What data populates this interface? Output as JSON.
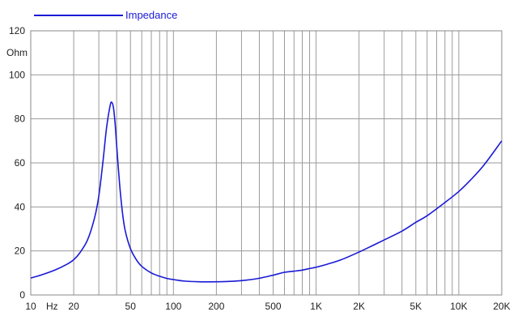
{
  "chart_data": {
    "type": "line",
    "title": "",
    "xlabel": "Hz",
    "ylabel": "Ohm",
    "x_scale": "log",
    "xlim": [
      10,
      20000
    ],
    "ylim": [
      0,
      120
    ],
    "grid": true,
    "legend_position": "top-left",
    "x_ticks": [
      {
        "value": 10,
        "label": "10"
      },
      {
        "value": 20,
        "label": "20"
      },
      {
        "value": 50,
        "label": "50"
      },
      {
        "value": 100,
        "label": "100"
      },
      {
        "value": 200,
        "label": "200"
      },
      {
        "value": 500,
        "label": "500"
      },
      {
        "value": 1000,
        "label": "1K"
      },
      {
        "value": 2000,
        "label": "2K"
      },
      {
        "value": 5000,
        "label": "5K"
      },
      {
        "value": 10000,
        "label": "10K"
      },
      {
        "value": 20000,
        "label": "20K"
      }
    ],
    "y_ticks": [
      0,
      20,
      40,
      60,
      80,
      100,
      120
    ],
    "series": [
      {
        "name": "Impedance",
        "color": "#1a1ad6",
        "x": [
          10,
          12,
          15,
          18,
          20,
          22,
          25,
          28,
          30,
          32,
          34,
          36,
          37,
          38,
          39,
          40,
          42,
          44,
          46,
          50,
          55,
          60,
          70,
          80,
          90,
          100,
          120,
          150,
          200,
          250,
          300,
          400,
          500,
          600,
          700,
          800,
          900,
          1000,
          1200,
          1500,
          2000,
          2500,
          3000,
          4000,
          5000,
          6000,
          8000,
          10000,
          12000,
          15000,
          20000
        ],
        "y": [
          7.7,
          9.2,
          11.5,
          14,
          16,
          19,
          25,
          35,
          45,
          60,
          76,
          86,
          87.5,
          85,
          78,
          68,
          50,
          37,
          29,
          21,
          16,
          13,
          10,
          8.5,
          7.5,
          7,
          6.3,
          6,
          6,
          6.2,
          6.5,
          7.6,
          9,
          10.3,
          10.8,
          11.3,
          12,
          12.6,
          14,
          16,
          19.5,
          22.5,
          25,
          29,
          33,
          36,
          42,
          47,
          52,
          59,
          70
        ]
      }
    ]
  }
}
